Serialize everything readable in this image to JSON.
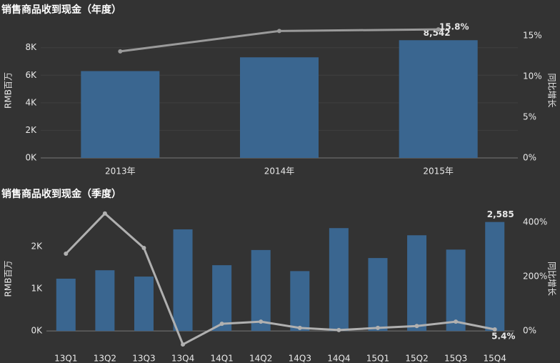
{
  "chart_data": [
    {
      "type": "bar",
      "title": "销售商品收到现金（年度）",
      "y_label": "RMB百万",
      "y2_label": "同比增长",
      "categories": [
        "2013年",
        "2014年",
        "2015年"
      ],
      "series": [
        {
          "type": "bar",
          "color": "#3a6690",
          "values": [
            6300,
            7300,
            8542
          ],
          "value_labels": [
            null,
            null,
            "8,542"
          ]
        },
        {
          "type": "line",
          "axis": "y2",
          "color": "#9a9a9a",
          "values": [
            13.1,
            15.6,
            15.8
          ],
          "value_labels": [
            null,
            null,
            "15.8%"
          ]
        }
      ],
      "ylim": [
        0,
        9800
      ],
      "yticks": [
        {
          "value": 0,
          "label": "0K"
        },
        {
          "value": 2000,
          "label": "2K"
        },
        {
          "value": 4000,
          "label": "4K"
        },
        {
          "value": 6000,
          "label": "6K"
        },
        {
          "value": 8000,
          "label": "8K"
        }
      ],
      "y2lim": [
        0,
        16.6
      ],
      "y2ticks": [
        {
          "value": 0,
          "label": "0%"
        },
        {
          "value": 5,
          "label": "5%"
        },
        {
          "value": 10,
          "label": "10%"
        },
        {
          "value": 15,
          "label": "15%"
        }
      ],
      "grid": true
    },
    {
      "type": "bar",
      "title": "销售商品收到现金（季度）",
      "y_label": "RMB百万",
      "y2_label": "同比增长",
      "categories": [
        "13Q1",
        "13Q2",
        "13Q3",
        "13Q4",
        "14Q1",
        "14Q2",
        "14Q3",
        "14Q4",
        "15Q1",
        "15Q2",
        "15Q3",
        "15Q4"
      ],
      "series": [
        {
          "type": "bar",
          "color": "#3a6690",
          "values": [
            1240,
            1440,
            1290,
            2410,
            1560,
            1920,
            1420,
            2440,
            1730,
            2270,
            1930,
            2585
          ],
          "value_labels": [
            null,
            null,
            null,
            null,
            null,
            null,
            null,
            null,
            null,
            null,
            null,
            "2,585"
          ]
        },
        {
          "type": "line",
          "axis": "y2",
          "color": "#b0b0b0",
          "values": [
            284,
            432,
            305,
            -50,
            26,
            34,
            11,
            3,
            11,
            18,
            34,
            5.4
          ],
          "value_labels": [
            null,
            null,
            null,
            null,
            null,
            null,
            null,
            null,
            null,
            null,
            null,
            "5.4%"
          ]
        }
      ],
      "ylim": [
        -540,
        3020
      ],
      "yticks": [
        {
          "value": 0,
          "label": "0K"
        },
        {
          "value": 1000,
          "label": "1K"
        },
        {
          "value": 2000,
          "label": "2K"
        }
      ],
      "y2lim": [
        -84,
        468
      ],
      "y2ticks": [
        {
          "value": 0,
          "label": "0%"
        },
        {
          "value": 200,
          "label": "200%"
        },
        {
          "value": 400,
          "label": "400%"
        }
      ],
      "grid": false
    }
  ]
}
